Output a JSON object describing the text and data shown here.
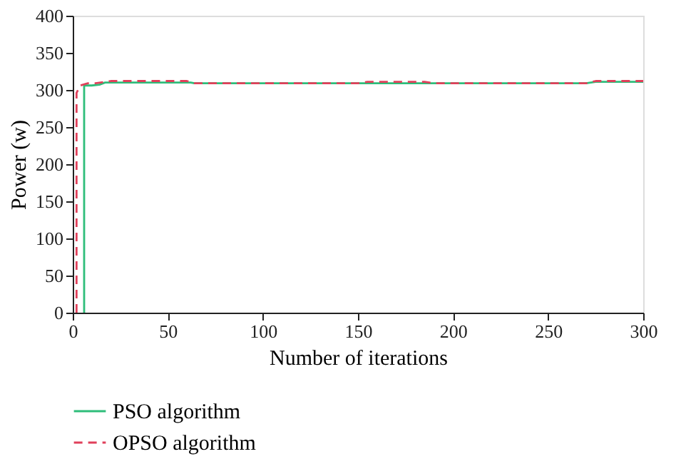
{
  "chart_data": {
    "type": "line",
    "xlabel": "Number of iterations",
    "ylabel": "Power (w)",
    "xlim": [
      0,
      300
    ],
    "ylim": [
      0,
      400
    ],
    "xticks": [
      0,
      50,
      100,
      150,
      200,
      250,
      300
    ],
    "yticks": [
      0,
      50,
      100,
      150,
      200,
      250,
      300,
      350,
      400
    ],
    "grid": false,
    "legend": "bottom",
    "series": [
      {
        "name": "PSO algorithm",
        "color": "#2ebd7a",
        "line_style": "solid",
        "x": [
          6,
          6,
          10,
          14,
          17,
          40,
          62,
          64,
          115,
          117,
          215,
          218,
          270,
          275,
          300
        ],
        "values": [
          0,
          306,
          306,
          307,
          310,
          310,
          310,
          309,
          309,
          309,
          309,
          309,
          309,
          311,
          311
        ]
      },
      {
        "name": "OPSO algorithm",
        "color": "#e0405a",
        "line_style": "dashed",
        "x": [
          2,
          2,
          4,
          8,
          12,
          20,
          60,
          64,
          150,
          155,
          185,
          190,
          220,
          225,
          270,
          275,
          300
        ],
        "values": [
          0,
          296,
          306,
          309,
          309,
          312,
          312,
          309,
          309,
          311,
          311,
          309,
          309,
          309,
          309,
          312,
          312
        ]
      }
    ]
  }
}
